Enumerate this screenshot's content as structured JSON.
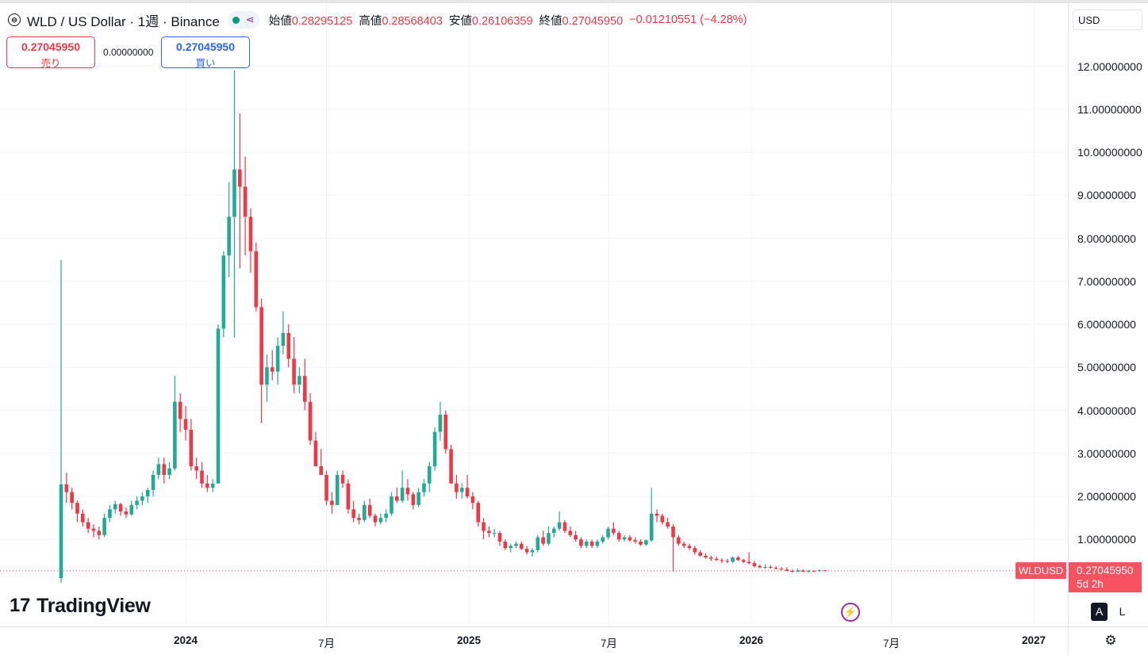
{
  "legend": {
    "title": "WLD / US Dollar · 1週 · Binance",
    "open_label": "始値",
    "open": "0.28295125",
    "high_label": "高値",
    "high": "0.28568403",
    "low_label": "安値",
    "low": "0.26106359",
    "close_label": "終値",
    "close": "0.27045950",
    "change": "−0.01210551 (−4.28%)",
    "symbol_icon": "coin-icon",
    "market_status_color": "#089981"
  },
  "trade": {
    "sell_price": "0.27045950",
    "sell_label": "売り",
    "spread": "0.00000000",
    "buy_price": "0.27045950",
    "buy_label": "買い"
  },
  "currency": "USD",
  "last_price": {
    "symbol": "WLDUSD",
    "price": "0.27045950",
    "countdown": "5d 2h",
    "color": "#f7525f"
  },
  "branding": {
    "name": "TradingView"
  },
  "scale_buttons": {
    "auto": "A",
    "log": "L"
  },
  "chart_data": {
    "type": "candlestick",
    "interval": "1W",
    "ylim": [
      0,
      12.6
    ],
    "y_ticks": [
      "1.00000000",
      "2.00000000",
      "3.00000000",
      "4.00000000",
      "5.00000000",
      "6.00000000",
      "7.00000000",
      "8.00000000",
      "9.00000000",
      "10.00000000",
      "11.00000000",
      "12.00000000"
    ],
    "y_tick_values": [
      1,
      2,
      3,
      4,
      5,
      6,
      7,
      8,
      9,
      10,
      11,
      12
    ],
    "x_ticks": [
      {
        "label": "2024",
        "date": "2024-01-01",
        "year": true
      },
      {
        "label": "7月",
        "date": "2024-07-01",
        "year": false
      },
      {
        "label": "2025",
        "date": "2025-01-01",
        "year": true
      },
      {
        "label": "7月",
        "date": "2025-07-01",
        "year": false
      },
      {
        "label": "2026",
        "date": "2026-01-01",
        "year": true
      },
      {
        "label": "7月",
        "date": "2026-07-01",
        "year": false
      },
      {
        "label": "2027",
        "date": "2027-01-01",
        "year": true
      }
    ],
    "up_color": "#22ab94",
    "down_color": "#f23645",
    "last_close": 0.2705,
    "candles": [
      [
        "2023-07-24",
        0.1,
        7.5,
        0.0,
        2.28
      ],
      [
        "2023-07-31",
        2.28,
        2.55,
        1.85,
        2.1
      ],
      [
        "2023-08-07",
        2.1,
        2.2,
        1.7,
        1.85
      ],
      [
        "2023-08-14",
        1.85,
        1.9,
        1.4,
        1.6
      ],
      [
        "2023-08-21",
        1.6,
        1.7,
        1.3,
        1.4
      ],
      [
        "2023-08-28",
        1.4,
        1.5,
        1.15,
        1.25
      ],
      [
        "2023-09-04",
        1.25,
        1.35,
        1.05,
        1.2
      ],
      [
        "2023-09-11",
        1.2,
        1.3,
        1.0,
        1.1
      ],
      [
        "2023-09-18",
        1.1,
        1.6,
        1.05,
        1.5
      ],
      [
        "2023-09-25",
        1.5,
        1.8,
        1.4,
        1.7
      ],
      [
        "2023-10-02",
        1.7,
        1.9,
        1.6,
        1.82
      ],
      [
        "2023-10-09",
        1.82,
        1.85,
        1.55,
        1.65
      ],
      [
        "2023-10-16",
        1.65,
        1.75,
        1.5,
        1.58
      ],
      [
        "2023-10-23",
        1.58,
        1.9,
        1.55,
        1.8
      ],
      [
        "2023-10-30",
        1.8,
        2.0,
        1.7,
        1.9
      ],
      [
        "2023-11-06",
        1.9,
        2.1,
        1.8,
        2.0
      ],
      [
        "2023-11-13",
        2.0,
        2.2,
        1.85,
        2.15
      ],
      [
        "2023-11-20",
        2.15,
        2.6,
        2.0,
        2.5
      ],
      [
        "2023-11-27",
        2.5,
        2.9,
        2.4,
        2.75
      ],
      [
        "2023-12-04",
        2.75,
        2.9,
        2.3,
        2.5
      ],
      [
        "2023-12-11",
        2.5,
        2.8,
        2.4,
        2.65
      ],
      [
        "2023-12-18",
        2.65,
        4.8,
        2.6,
        4.2
      ],
      [
        "2023-12-25",
        4.2,
        4.4,
        3.5,
        3.8
      ],
      [
        "2024-01-01",
        3.8,
        4.1,
        3.3,
        3.55
      ],
      [
        "2024-01-08",
        3.55,
        3.8,
        2.6,
        2.7
      ],
      [
        "2024-01-15",
        2.7,
        2.9,
        2.4,
        2.6
      ],
      [
        "2024-01-22",
        2.6,
        2.8,
        2.2,
        2.3
      ],
      [
        "2024-01-29",
        2.3,
        2.5,
        2.1,
        2.2
      ],
      [
        "2024-02-05",
        2.2,
        2.4,
        2.1,
        2.3
      ],
      [
        "2024-02-12",
        2.3,
        6.0,
        2.3,
        5.9
      ],
      [
        "2024-02-19",
        5.9,
        7.7,
        5.7,
        7.6
      ],
      [
        "2024-02-26",
        7.6,
        9.3,
        7.1,
        8.5
      ],
      [
        "2024-03-04",
        8.5,
        11.9,
        5.7,
        9.6
      ],
      [
        "2024-03-11",
        9.6,
        10.9,
        7.3,
        9.2
      ],
      [
        "2024-03-18",
        9.2,
        9.9,
        7.6,
        8.5
      ],
      [
        "2024-03-25",
        8.5,
        8.7,
        7.2,
        7.7
      ],
      [
        "2024-04-01",
        7.7,
        7.9,
        6.3,
        6.4
      ],
      [
        "2024-04-08",
        6.4,
        6.6,
        3.7,
        4.6
      ],
      [
        "2024-04-15",
        4.6,
        5.3,
        4.2,
        5.0
      ],
      [
        "2024-04-22",
        5.0,
        5.4,
        4.7,
        4.9
      ],
      [
        "2024-04-29",
        4.9,
        5.7,
        4.6,
        5.5
      ],
      [
        "2024-05-06",
        5.5,
        6.3,
        5.3,
        5.8
      ],
      [
        "2024-05-13",
        5.8,
        6.0,
        5.0,
        5.2
      ],
      [
        "2024-05-20",
        5.2,
        5.7,
        4.4,
        4.6
      ],
      [
        "2024-05-27",
        4.6,
        5.0,
        4.4,
        4.8
      ],
      [
        "2024-06-03",
        4.8,
        5.2,
        4.0,
        4.2
      ],
      [
        "2024-06-10",
        4.2,
        4.4,
        3.2,
        3.3
      ],
      [
        "2024-06-17",
        3.3,
        3.5,
        2.7,
        2.7
      ],
      [
        "2024-06-24",
        2.7,
        3.1,
        2.5,
        2.5
      ],
      [
        "2024-07-01",
        2.5,
        2.6,
        1.8,
        1.9
      ],
      [
        "2024-07-08",
        1.9,
        2.1,
        1.6,
        1.8
      ],
      [
        "2024-07-15",
        1.8,
        2.6,
        1.8,
        2.5
      ],
      [
        "2024-07-22",
        2.5,
        2.6,
        2.2,
        2.3
      ],
      [
        "2024-07-29",
        2.3,
        2.4,
        1.6,
        1.7
      ],
      [
        "2024-08-05",
        1.7,
        1.9,
        1.4,
        1.5
      ],
      [
        "2024-08-12",
        1.5,
        1.6,
        1.35,
        1.45
      ],
      [
        "2024-08-19",
        1.45,
        1.9,
        1.4,
        1.8
      ],
      [
        "2024-08-26",
        1.8,
        1.95,
        1.5,
        1.55
      ],
      [
        "2024-09-02",
        1.55,
        1.6,
        1.3,
        1.4
      ],
      [
        "2024-09-09",
        1.4,
        1.6,
        1.35,
        1.5
      ],
      [
        "2024-09-16",
        1.5,
        1.7,
        1.4,
        1.6
      ],
      [
        "2024-09-23",
        1.6,
        2.1,
        1.55,
        2.0
      ],
      [
        "2024-09-30",
        2.0,
        2.2,
        1.85,
        1.9
      ],
      [
        "2024-10-07",
        1.9,
        2.6,
        1.85,
        2.2
      ],
      [
        "2024-10-14",
        2.2,
        2.4,
        1.9,
        2.05
      ],
      [
        "2024-10-21",
        2.05,
        2.1,
        1.7,
        1.8
      ],
      [
        "2024-10-28",
        1.8,
        2.2,
        1.75,
        2.1
      ],
      [
        "2024-11-04",
        2.1,
        2.4,
        2.0,
        2.3
      ],
      [
        "2024-11-11",
        2.3,
        2.8,
        2.1,
        2.7
      ],
      [
        "2024-11-18",
        2.7,
        3.6,
        2.6,
        3.5
      ],
      [
        "2024-11-25",
        3.5,
        4.2,
        3.3,
        3.9
      ],
      [
        "2024-12-02",
        3.9,
        4.0,
        3.0,
        3.1
      ],
      [
        "2024-12-09",
        3.1,
        3.2,
        2.3,
        2.3
      ],
      [
        "2024-12-16",
        2.3,
        2.5,
        1.95,
        2.1
      ],
      [
        "2024-12-23",
        2.1,
        2.3,
        1.95,
        2.2
      ],
      [
        "2024-12-30",
        2.2,
        2.5,
        1.95,
        2.0
      ],
      [
        "2025-01-06",
        2.0,
        2.1,
        1.7,
        1.85
      ],
      [
        "2025-01-13",
        1.85,
        1.9,
        1.3,
        1.4
      ],
      [
        "2025-01-20",
        1.4,
        1.5,
        1.0,
        1.2
      ],
      [
        "2025-01-27",
        1.2,
        1.3,
        1.05,
        1.15
      ],
      [
        "2025-02-03",
        1.15,
        1.25,
        1.05,
        1.15
      ],
      [
        "2025-02-10",
        1.15,
        1.2,
        0.85,
        0.95
      ],
      [
        "2025-02-17",
        0.95,
        1.0,
        0.75,
        0.8
      ],
      [
        "2025-02-24",
        0.8,
        0.9,
        0.7,
        0.85
      ],
      [
        "2025-03-03",
        0.85,
        0.95,
        0.8,
        0.9
      ],
      [
        "2025-03-10",
        0.9,
        0.95,
        0.75,
        0.78
      ],
      [
        "2025-03-17",
        0.78,
        0.85,
        0.65,
        0.7
      ],
      [
        "2025-03-24",
        0.7,
        0.8,
        0.6,
        0.75
      ],
      [
        "2025-03-31",
        0.75,
        1.1,
        0.7,
        1.05
      ],
      [
        "2025-04-07",
        1.05,
        1.2,
        0.85,
        0.9
      ],
      [
        "2025-04-14",
        0.9,
        1.3,
        0.85,
        1.15
      ],
      [
        "2025-04-21",
        1.15,
        1.3,
        1.05,
        1.25
      ],
      [
        "2025-04-28",
        1.25,
        1.65,
        1.2,
        1.4
      ],
      [
        "2025-05-05",
        1.4,
        1.45,
        1.15,
        1.2
      ],
      [
        "2025-05-12",
        1.2,
        1.3,
        1.05,
        1.1
      ],
      [
        "2025-05-19",
        1.1,
        1.2,
        0.95,
        1.0
      ],
      [
        "2025-05-26",
        1.0,
        1.05,
        0.8,
        0.85
      ],
      [
        "2025-06-02",
        0.85,
        1.0,
        0.8,
        0.95
      ],
      [
        "2025-06-09",
        0.95,
        1.0,
        0.8,
        0.85
      ],
      [
        "2025-06-16",
        0.85,
        1.0,
        0.8,
        0.95
      ],
      [
        "2025-06-23",
        0.95,
        1.1,
        0.9,
        1.05
      ],
      [
        "2025-06-30",
        1.05,
        1.3,
        1.0,
        1.25
      ],
      [
        "2025-07-07",
        1.25,
        1.4,
        1.1,
        1.15
      ],
      [
        "2025-07-14",
        1.15,
        1.2,
        0.95,
        1.0
      ],
      [
        "2025-07-21",
        1.0,
        1.1,
        0.95,
        1.05
      ],
      [
        "2025-07-28",
        1.05,
        1.1,
        0.95,
        0.98
      ],
      [
        "2025-08-04",
        0.98,
        1.05,
        0.9,
        0.95
      ],
      [
        "2025-08-11",
        0.95,
        1.0,
        0.85,
        0.88
      ],
      [
        "2025-08-18",
        0.88,
        1.0,
        0.85,
        0.98
      ],
      [
        "2025-08-25",
        0.98,
        2.2,
        0.95,
        1.6
      ],
      [
        "2025-09-01",
        1.6,
        1.7,
        1.4,
        1.55
      ],
      [
        "2025-09-08",
        1.55,
        1.6,
        1.35,
        1.4
      ],
      [
        "2025-09-15",
        1.4,
        1.5,
        1.25,
        1.3
      ],
      [
        "2025-09-22",
        1.3,
        1.35,
        0.25,
        1.05
      ],
      [
        "2025-09-29",
        1.05,
        1.1,
        0.85,
        0.9
      ],
      [
        "2025-10-06",
        0.9,
        0.95,
        0.8,
        0.85
      ],
      [
        "2025-10-13",
        0.85,
        0.9,
        0.75,
        0.8
      ],
      [
        "2025-10-20",
        0.8,
        0.85,
        0.65,
        0.7
      ],
      [
        "2025-10-27",
        0.7,
        0.75,
        0.6,
        0.62
      ],
      [
        "2025-11-03",
        0.62,
        0.68,
        0.55,
        0.58
      ],
      [
        "2025-11-10",
        0.58,
        0.62,
        0.5,
        0.55
      ],
      [
        "2025-11-17",
        0.55,
        0.6,
        0.5,
        0.52
      ],
      [
        "2025-11-24",
        0.52,
        0.56,
        0.45,
        0.5
      ],
      [
        "2025-12-01",
        0.5,
        0.55,
        0.45,
        0.48
      ],
      [
        "2025-12-08",
        0.48,
        0.6,
        0.45,
        0.58
      ],
      [
        "2025-12-15",
        0.58,
        0.62,
        0.5,
        0.52
      ],
      [
        "2025-12-22",
        0.52,
        0.55,
        0.45,
        0.48
      ],
      [
        "2025-12-29",
        0.48,
        0.7,
        0.42,
        0.45
      ],
      [
        "2026-01-05",
        0.45,
        0.5,
        0.35,
        0.38
      ],
      [
        "2026-01-12",
        0.38,
        0.42,
        0.33,
        0.35
      ],
      [
        "2026-01-19",
        0.35,
        0.42,
        0.32,
        0.36
      ],
      [
        "2026-01-26",
        0.36,
        0.4,
        0.32,
        0.34
      ],
      [
        "2026-02-02",
        0.34,
        0.38,
        0.3,
        0.32
      ],
      [
        "2026-02-09",
        0.32,
        0.36,
        0.28,
        0.3
      ],
      [
        "2026-02-16",
        0.3,
        0.35,
        0.26,
        0.27
      ],
      [
        "2026-02-23",
        0.27,
        0.3,
        0.23,
        0.25
      ],
      [
        "2026-03-02",
        0.25,
        0.32,
        0.24,
        0.28
      ],
      [
        "2026-03-09",
        0.28,
        0.3,
        0.24,
        0.25
      ],
      [
        "2026-03-16",
        0.25,
        0.29,
        0.23,
        0.27
      ],
      [
        "2026-03-23",
        0.27,
        0.28,
        0.24,
        0.26
      ],
      [
        "2026-03-30",
        0.26,
        0.3,
        0.25,
        0.28
      ],
      [
        "2026-04-06",
        0.283,
        0.286,
        0.261,
        0.2705
      ]
    ]
  }
}
